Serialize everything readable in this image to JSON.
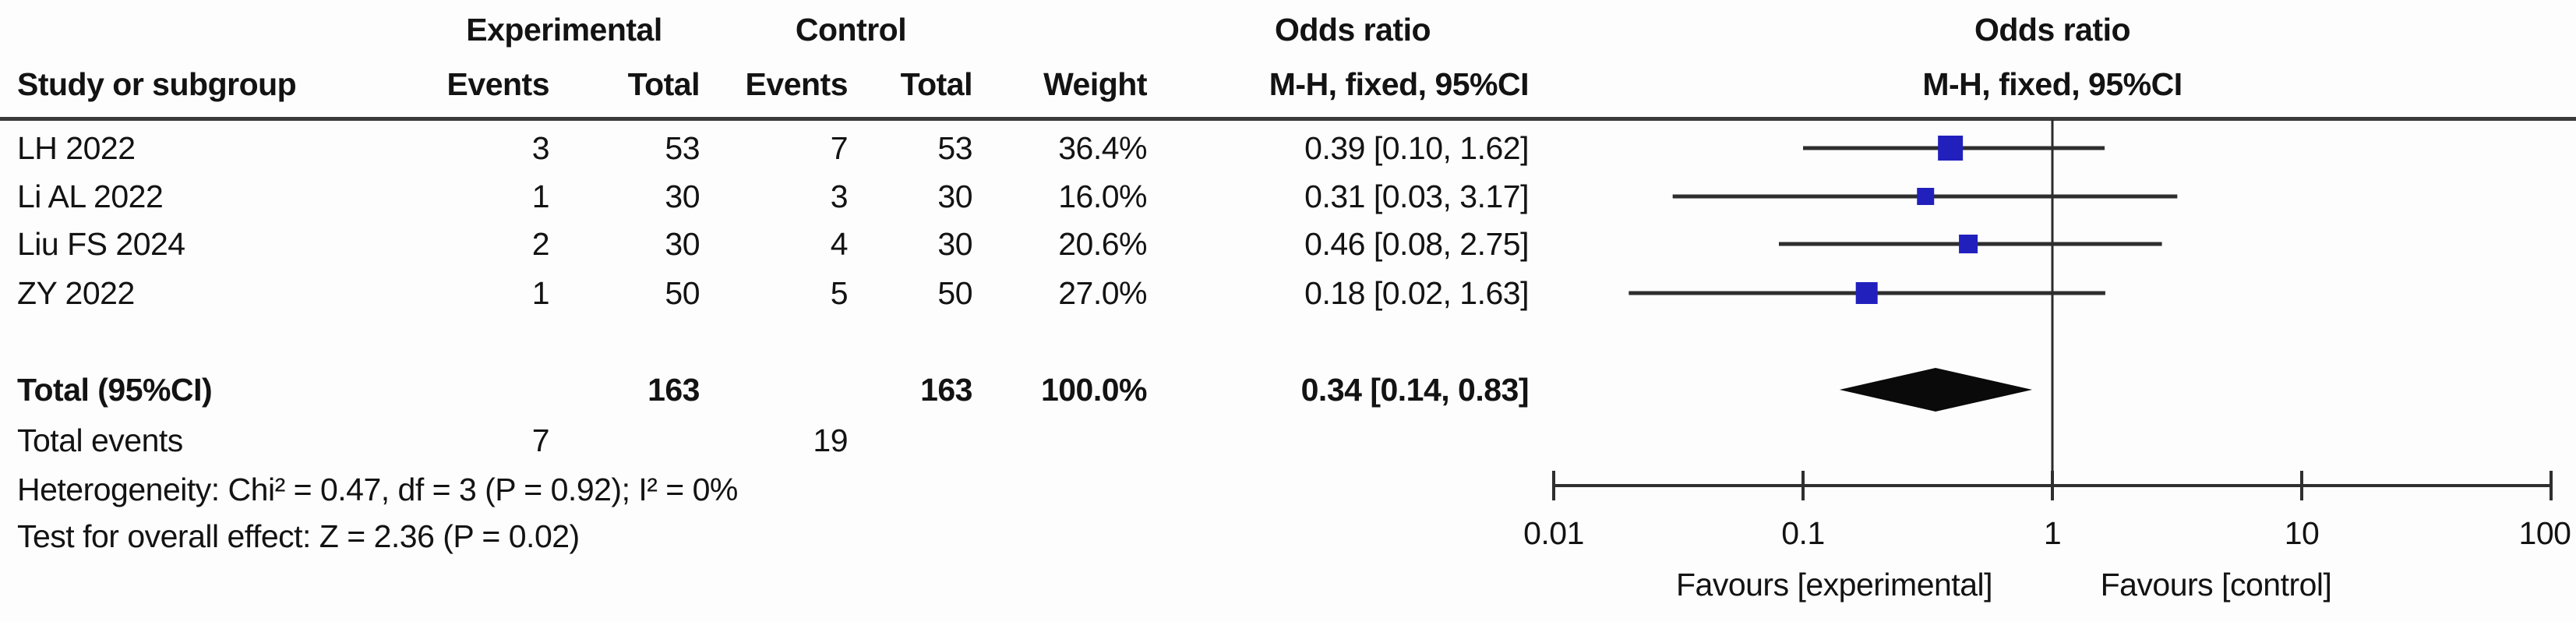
{
  "colors": {
    "square": "#2120bd",
    "ci_line": "#2e2e2e",
    "diamond": "#0a0a0a",
    "null_line": "#2b2b2b",
    "axis": "#2f2f2f",
    "rule": "#3b3b3b",
    "text": "#131313"
  },
  "header": {
    "group_experimental": "Experimental",
    "group_control": "Control",
    "study": "Study or subgroup",
    "events": "Events",
    "total": "Total",
    "weight": "Weight",
    "or_line1": "Odds ratio",
    "or_line2": "M-H, fixed, 95%CI",
    "plot_line1": "Odds ratio",
    "plot_line2": "M-H, fixed, 95%CI"
  },
  "rows": [
    {
      "study": "LH 2022",
      "events_exp": "3",
      "total_exp": "53",
      "events_ctrl": "7",
      "total_ctrl": "53",
      "weight": "36.4%",
      "or_ci": "0.39 [0.10, 1.62]"
    },
    {
      "study": "Li AL 2022",
      "events_exp": "1",
      "total_exp": "30",
      "events_ctrl": "3",
      "total_ctrl": "30",
      "weight": "16.0%",
      "or_ci": "0.31 [0.03, 3.17]"
    },
    {
      "study": "Liu FS 2024",
      "events_exp": "2",
      "total_exp": "30",
      "events_ctrl": "4",
      "total_ctrl": "30",
      "weight": "20.6%",
      "or_ci": "0.46 [0.08, 2.75]"
    },
    {
      "study": "ZY 2022",
      "events_exp": "1",
      "total_exp": "50",
      "events_ctrl": "5",
      "total_ctrl": "50",
      "weight": "27.0%",
      "or_ci": "0.18 [0.02, 1.63]"
    }
  ],
  "totals": {
    "label": "Total (95%CI)",
    "total_exp": "163",
    "total_ctrl": "163",
    "weight": "100.0%",
    "or_ci": "0.34 [0.14, 0.83]"
  },
  "total_events": {
    "label": "Total events",
    "experimental": "7",
    "control": "19"
  },
  "stats": {
    "heterogeneity": "Heterogeneity: Chi² = 0.47, df = 3 (P = 0.92); I² = 0%",
    "overall_effect": "Test for overall effect: Z = 2.36 (P = 0.02)"
  },
  "axis": {
    "tick_labels": [
      "0.01",
      "0.1",
      "1",
      "10",
      "100"
    ],
    "favours_left": "Favours [experimental]",
    "favours_right": "Favours [control]"
  },
  "chart_data": {
    "type": "forest",
    "effect_measure": "Odds ratio",
    "model": "M-H, fixed",
    "x_scale": "log",
    "xlim": [
      0.01,
      100
    ],
    "x_ticks": [
      0.01,
      0.1,
      1,
      10,
      100
    ],
    "null_line": 1,
    "studies": [
      {
        "name": "LH 2022",
        "or": 0.39,
        "ci_low": 0.1,
        "ci_high": 1.62,
        "weight_pct": 36.4
      },
      {
        "name": "Li AL 2022",
        "or": 0.31,
        "ci_low": 0.03,
        "ci_high": 3.17,
        "weight_pct": 16.0
      },
      {
        "name": "Liu FS 2024",
        "or": 0.46,
        "ci_low": 0.08,
        "ci_high": 2.75,
        "weight_pct": 20.6
      },
      {
        "name": "ZY 2022",
        "or": 0.18,
        "ci_low": 0.02,
        "ci_high": 1.63,
        "weight_pct": 27.0
      }
    ],
    "overall": {
      "or": 0.34,
      "ci_low": 0.14,
      "ci_high": 0.83,
      "weight_pct": 100.0
    },
    "total_experimental": 163,
    "total_control": 163,
    "total_events_experimental": 7,
    "total_events_control": 19,
    "heterogeneity": {
      "chi2": 0.47,
      "df": 3,
      "p": 0.92,
      "i2_pct": 0
    },
    "overall_effect": {
      "z": 2.36,
      "p": 0.02
    }
  }
}
